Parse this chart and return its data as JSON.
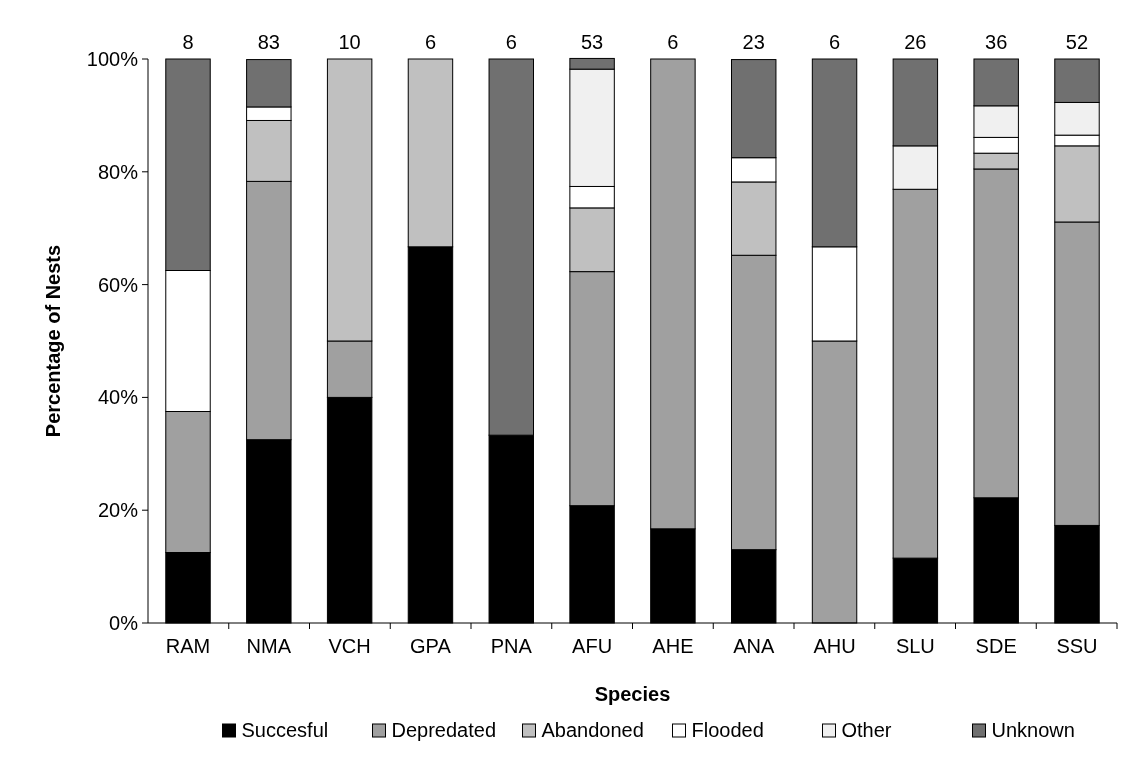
{
  "chart_data": {
    "type": "bar",
    "stacked": true,
    "xlabel": "Species",
    "ylabel": "Percentage of Nests",
    "categories": [
      "RAM",
      "NMA",
      "VCH",
      "GPA",
      "PNA",
      "AFU",
      "AHE",
      "ANA",
      "AHU",
      "SLU",
      "SDE",
      "SSU"
    ],
    "series": [
      {
        "name": "Succesful",
        "color": "#000000",
        "values": [
          12.5,
          32.5,
          40,
          66.7,
          33.3,
          20.8,
          16.7,
          13.0,
          0,
          11.5,
          22.2,
          17.3
        ]
      },
      {
        "name": "Depredated",
        "color": "#a0a0a0",
        "values": [
          25,
          45.8,
          10,
          0,
          0,
          41.5,
          83.3,
          52.2,
          50,
          65.4,
          58.3,
          53.8
        ]
      },
      {
        "name": "Abandoned",
        "color": "#c0c0c0",
        "values": [
          0,
          10.8,
          50,
          33.3,
          0,
          11.3,
          0,
          13.0,
          0,
          0,
          2.8,
          13.5
        ]
      },
      {
        "name": "Flooded",
        "color": "#ffffff",
        "values": [
          25,
          2.4,
          0,
          0,
          0,
          3.8,
          0,
          4.3,
          16.7,
          0,
          2.8,
          1.9
        ]
      },
      {
        "name": "Other",
        "color": "#f0f0f0",
        "values": [
          0,
          0,
          0,
          0,
          0,
          20.8,
          0,
          0,
          0,
          7.7,
          5.6,
          5.8
        ]
      },
      {
        "name": "Unknown",
        "color": "#707070",
        "values": [
          37.5,
          8.4,
          0,
          0,
          66.7,
          1.9,
          0,
          17.4,
          33.3,
          15.4,
          8.3,
          7.7
        ]
      }
    ],
    "annotations": [
      {
        "text": "8",
        "x": "RAM",
        "y": 100
      },
      {
        "text": "83",
        "x": "NMA",
        "y": 100
      },
      {
        "text": "10",
        "x": "VCH",
        "y": 100
      },
      {
        "text": "6",
        "x": "GPA",
        "y": 100
      },
      {
        "text": "6",
        "x": "PNA",
        "y": 100
      },
      {
        "text": "53",
        "x": "AFU",
        "y": 100
      },
      {
        "text": "6",
        "x": "AHE",
        "y": 100
      },
      {
        "text": "23",
        "x": "ANA",
        "y": 100
      },
      {
        "text": "6",
        "x": "AHU",
        "y": 100
      },
      {
        "text": "26",
        "x": "SLU",
        "y": 100
      },
      {
        "text": "36",
        "x": "SDE",
        "y": 100
      },
      {
        "text": "52",
        "x": "SSU",
        "y": 100
      }
    ],
    "ylim": [
      0,
      100
    ],
    "yticks": [
      {
        "value": 0,
        "label": "0%"
      },
      {
        "value": 20,
        "label": "20%"
      },
      {
        "value": 40,
        "label": "40%"
      },
      {
        "value": 60,
        "label": "60%"
      },
      {
        "value": 80,
        "label": "80%"
      },
      {
        "value": 100,
        "label": "100%"
      }
    ],
    "grid": false,
    "legend": "bottom"
  }
}
